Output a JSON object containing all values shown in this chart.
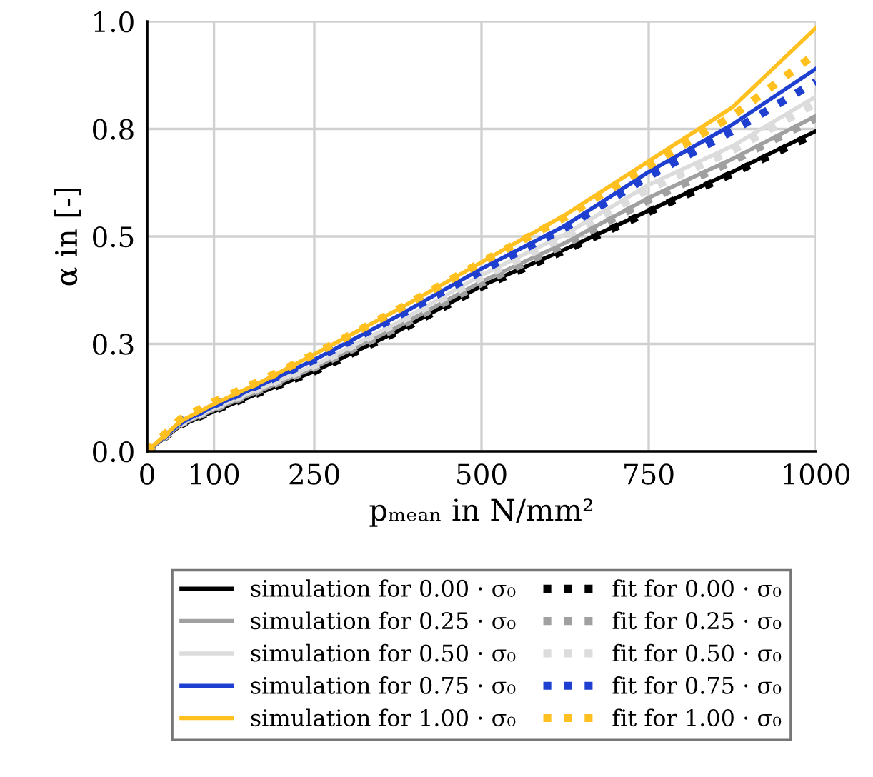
{
  "chart_data": {
    "type": "line",
    "xlabel": "pₘₑₐₙ in N/mm²",
    "ylabel": "α in [-]",
    "x": [
      0,
      50,
      100,
      175,
      250,
      375,
      500,
      625,
      750,
      875,
      1000
    ],
    "xlim": [
      0,
      1000
    ],
    "xticks": [
      0,
      100,
      250,
      500,
      750,
      1000
    ],
    "ylim": [
      0,
      1
    ],
    "yticks": [
      {
        "value": 0,
        "label": "0.0"
      },
      {
        "value": 0.25,
        "label": "0.3"
      },
      {
        "value": 0.5,
        "label": "0.5"
      },
      {
        "value": 0.75,
        "label": "0.8"
      },
      {
        "value": 1,
        "label": "1.0"
      }
    ],
    "grid": true,
    "legend": "bottom",
    "marker": "none",
    "series": [
      {
        "name": "simulation for 0.00 · σ₀",
        "color": "#000000",
        "line_style": "solid",
        "values": [
          0,
          0.06,
          0.093,
          0.14,
          0.186,
          0.28,
          0.385,
          0.47,
          0.56,
          0.65,
          0.745
        ]
      },
      {
        "name": "fit for 0.00 · σ₀",
        "color": "#000000",
        "line_style": "dotted",
        "values": [
          0,
          0.062,
          0.095,
          0.141,
          0.186,
          0.279,
          0.383,
          0.468,
          0.557,
          0.646,
          0.74
        ]
      },
      {
        "name": "simulation for 0.25 · σ₀",
        "color": "#a0a0a0",
        "line_style": "solid",
        "values": [
          0,
          0.062,
          0.097,
          0.145,
          0.195,
          0.29,
          0.395,
          0.485,
          0.59,
          0.68,
          0.78
        ]
      },
      {
        "name": "fit for 0.25 · σ₀",
        "color": "#a0a0a0",
        "line_style": "dotted",
        "values": [
          0,
          0.064,
          0.099,
          0.147,
          0.195,
          0.289,
          0.392,
          0.482,
          0.585,
          0.675,
          0.775
        ]
      },
      {
        "name": "simulation for 0.50 · σ₀",
        "color": "#dcdcdc",
        "line_style": "solid",
        "values": [
          0,
          0.064,
          0.1,
          0.15,
          0.2,
          0.3,
          0.41,
          0.505,
          0.62,
          0.71,
          0.825
        ]
      },
      {
        "name": "fit for 0.50 · σ₀",
        "color": "#dcdcdc",
        "line_style": "dotted",
        "values": [
          0,
          0.066,
          0.103,
          0.152,
          0.2,
          0.3,
          0.405,
          0.5,
          0.61,
          0.7,
          0.81
        ]
      },
      {
        "name": "simulation for 0.75 · σ₀",
        "color": "#1f3fd0",
        "line_style": "solid",
        "values": [
          0,
          0.066,
          0.105,
          0.158,
          0.213,
          0.315,
          0.425,
          0.525,
          0.65,
          0.76,
          0.89
        ]
      },
      {
        "name": "fit for 0.75 · σ₀",
        "color": "#1f3fd0",
        "line_style": "dotted",
        "values": [
          0,
          0.07,
          0.108,
          0.16,
          0.213,
          0.315,
          0.42,
          0.52,
          0.64,
          0.745,
          0.86
        ]
      },
      {
        "name": "simulation for 1.00 · σ₀",
        "color": "#ffc020",
        "line_style": "solid",
        "values": [
          0,
          0.07,
          0.11,
          0.165,
          0.226,
          0.33,
          0.44,
          0.55,
          0.675,
          0.8,
          0.985
        ]
      },
      {
        "name": "fit for 1.00 · σ₀",
        "color": "#ffc020",
        "line_style": "dotted",
        "values": [
          0,
          0.075,
          0.115,
          0.168,
          0.226,
          0.33,
          0.44,
          0.545,
          0.665,
          0.78,
          0.925
        ]
      }
    ]
  }
}
